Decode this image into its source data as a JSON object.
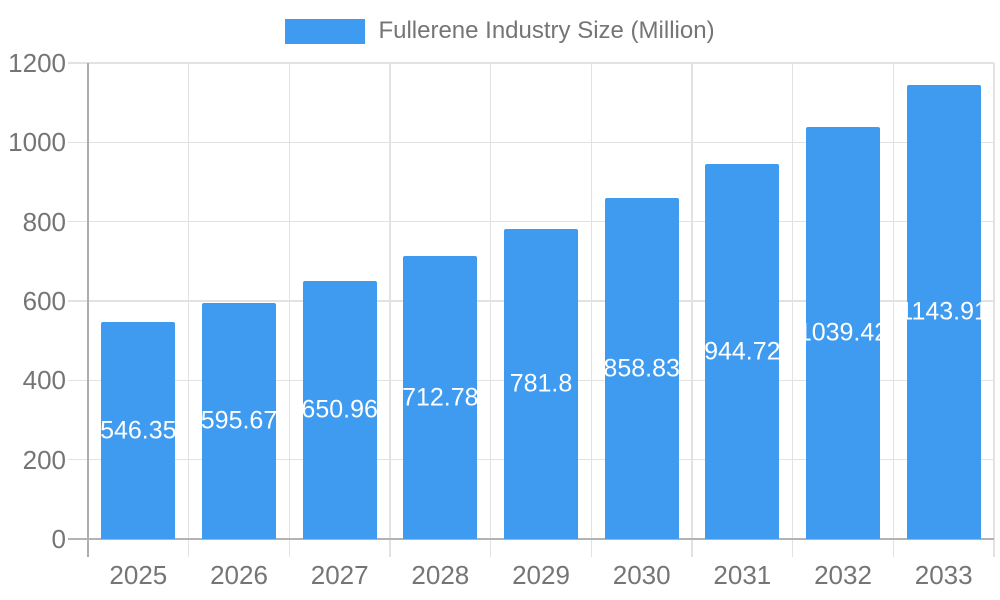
{
  "chart_data": {
    "type": "bar",
    "title": "",
    "legend": "Fullerene Industry Size (Million)",
    "legend_position": "top-center",
    "categories": [
      "2025",
      "2026",
      "2027",
      "2028",
      "2029",
      "2030",
      "2031",
      "2032",
      "2033"
    ],
    "values": [
      546.35,
      595.67,
      650.96,
      712.78,
      781.8,
      858.83,
      944.72,
      1039.42,
      1143.91
    ],
    "value_labels": [
      "546.35",
      "595.67",
      "650.96",
      "712.78",
      "781.8",
      "858.83",
      "944.72",
      "1039.42",
      "1143.91"
    ],
    "xlabel": "",
    "ylabel": "",
    "ylim": [
      0,
      1200
    ],
    "y_ticks": [
      0,
      200,
      400,
      600,
      800,
      1000,
      1200
    ],
    "grid": "on",
    "bar_color": "#3E9BF0",
    "value_label_color": "#FFFFFF",
    "axis_text_color": "#757575"
  }
}
